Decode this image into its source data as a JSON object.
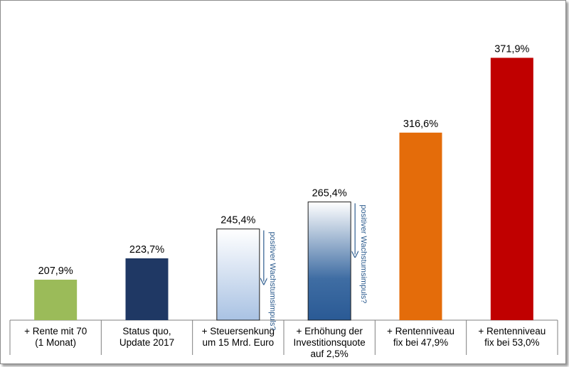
{
  "chart_data": {
    "type": "bar",
    "categories": [
      [
        "+  Rente mit 70",
        "(1 Monat)"
      ],
      [
        "Status quo,",
        "Update 2017"
      ],
      [
        "+ Steuersenkung",
        "um 15 Mrd. Euro"
      ],
      [
        "+ Erhöhung der",
        "Investitionsquote",
        "auf 2,5%"
      ],
      [
        "+ Rentenniveau",
        "fix bei 47,9%"
      ],
      [
        "+ Rentenniveau",
        "fix bei 53,0%"
      ]
    ],
    "values": [
      207.9,
      223.7,
      245.4,
      265.4,
      316.6,
      371.9
    ],
    "value_labels": [
      "207,9%",
      "223,7%",
      "245,4%",
      "265,4%",
      "316,6%",
      "371,9%"
    ],
    "ylim": [
      178,
      380
    ],
    "colors": [
      "#9bbb59",
      "#1f3864",
      "gradient-light-blue",
      "gradient-dark-blue",
      "#e46c0a",
      "#c00000"
    ],
    "annotations": [
      {
        "bar_index": 2,
        "text": "positiver Wachstumsimpuls?"
      },
      {
        "bar_index": 3,
        "text": "positiver Wachstumsimpuls?"
      }
    ],
    "title": "",
    "xlabel": "",
    "ylabel": "",
    "grid": false,
    "legend": "none"
  }
}
